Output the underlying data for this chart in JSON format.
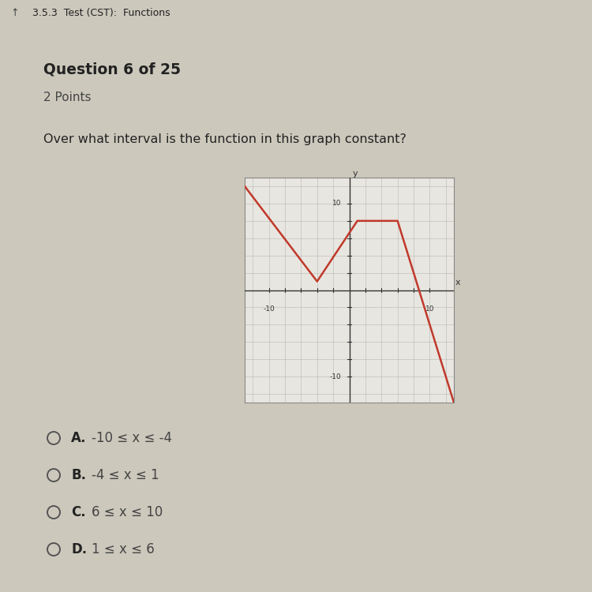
{
  "title_bar_text": "3.5.3  Test (CST):  Functions",
  "question": "Question 6 of 25",
  "points": "2 Points",
  "prompt": "Over what interval is the function in this graph constant?",
  "graph": {
    "xlim": [
      -13,
      13
    ],
    "ylim": [
      -13,
      13
    ],
    "line_x": [
      -13,
      -4,
      1,
      6,
      13
    ],
    "line_y": [
      12,
      1,
      8,
      8,
      -13
    ],
    "line_color": "#c0392b",
    "line_width": 1.8,
    "graph_bg": "#e8e6e0",
    "grid_color": "#aaaaaa"
  },
  "choices": [
    {
      "label": "A.",
      "text": "-10 ≤ x ≤ -4"
    },
    {
      "label": "B.",
      "text": "-4 ≤ x ≤ 1"
    },
    {
      "label": "C.",
      "text": "6 ≤ x ≤ 10"
    },
    {
      "label": "D.",
      "text": "1 ≤ x ≤ 6"
    }
  ],
  "bg_color": "#ccc8bc",
  "bar_color": "#b8b4a8",
  "text_dark": "#222222",
  "text_mid": "#444444",
  "text_light": "#666666"
}
